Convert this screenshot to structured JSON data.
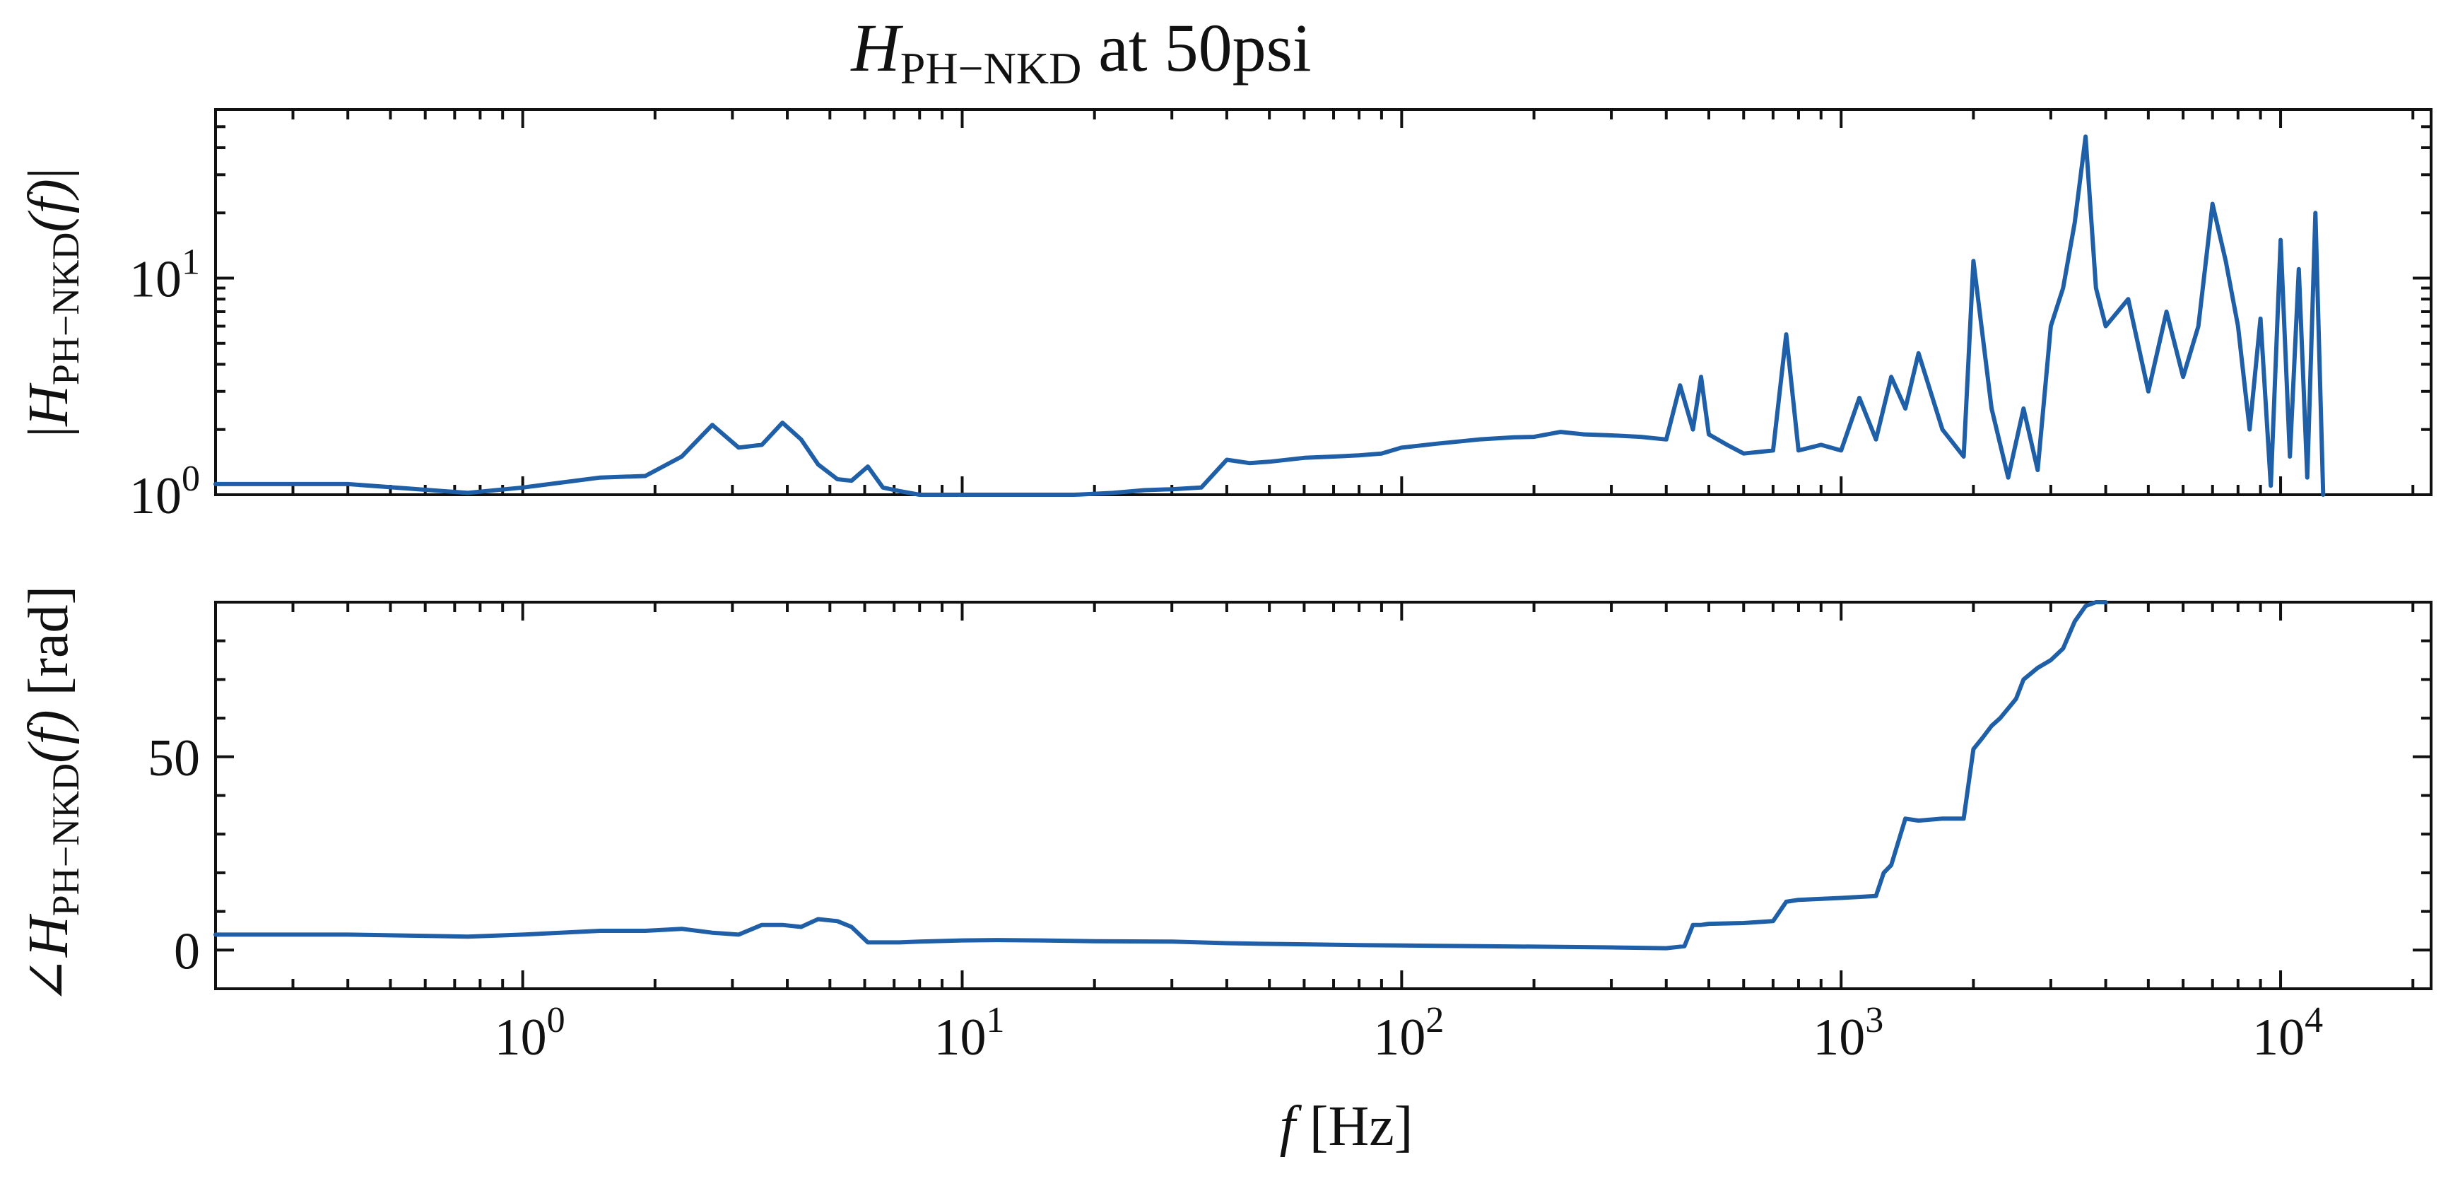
{
  "chart_data": {
    "type": "line",
    "title": {
      "symbol": "H",
      "subscript": "PH−NKD",
      "rest": " at 50psi"
    },
    "xlabel": {
      "symbol": "f",
      "unit": " [Hz]"
    },
    "x_scale": "log",
    "xlim": [
      0.2,
      22000
    ],
    "x_tick_labels": [
      {
        "value": 1,
        "base": "10",
        "exp": "0"
      },
      {
        "value": 10,
        "base": "10",
        "exp": "1"
      },
      {
        "value": 100,
        "base": "10",
        "exp": "2"
      },
      {
        "value": 1000,
        "base": "10",
        "exp": "3"
      },
      {
        "value": 10000,
        "base": "10",
        "exp": "4"
      }
    ],
    "line_color": "#1f5fa8",
    "panels": [
      {
        "name": "magnitude",
        "ylabel": {
          "pre": "|",
          "symbol": "H",
          "subscript": "PH−NKD",
          "arg": "(f)",
          "post": "|"
        },
        "y_scale": "log",
        "ylim": [
          1.0,
          60
        ],
        "y_tick_labels": [
          {
            "value": 1,
            "base": "10",
            "exp": "0"
          },
          {
            "value": 10,
            "base": "10",
            "exp": "1"
          }
        ],
        "x": [
          0.2,
          0.4,
          0.75,
          1.0,
          1.5,
          1.9,
          2.3,
          2.7,
          3.1,
          3.5,
          3.9,
          4.3,
          4.7,
          5.2,
          5.6,
          6.1,
          6.6,
          7.2,
          8.0,
          9.0,
          10,
          12,
          15,
          18,
          22,
          26,
          30,
          35,
          40,
          45,
          50,
          60,
          70,
          80,
          90,
          100,
          120,
          150,
          180,
          200,
          230,
          260,
          300,
          350,
          400,
          430,
          460,
          480,
          500,
          550,
          600,
          700,
          750,
          800,
          900,
          1000,
          1100,
          1200,
          1300,
          1400,
          1500,
          1700,
          1900,
          2000,
          2200,
          2400,
          2600,
          2800,
          3000,
          3200,
          3400,
          3600,
          3800,
          4000,
          4500,
          5000,
          5500,
          6000,
          6500,
          7000,
          7500,
          8000,
          8500,
          9000,
          9500,
          10000,
          10500,
          11000,
          11500,
          12000,
          12500
        ],
        "values": [
          1.12,
          1.12,
          1.02,
          1.08,
          1.2,
          1.22,
          1.5,
          2.1,
          1.65,
          1.7,
          2.15,
          1.8,
          1.38,
          1.18,
          1.16,
          1.35,
          1.08,
          1.04,
          1.0,
          0.97,
          0.96,
          0.97,
          0.98,
          1.0,
          1.02,
          1.05,
          1.06,
          1.08,
          1.45,
          1.4,
          1.42,
          1.48,
          1.5,
          1.52,
          1.55,
          1.65,
          1.72,
          1.8,
          1.84,
          1.85,
          1.95,
          1.9,
          1.88,
          1.85,
          1.8,
          3.2,
          2.0,
          3.5,
          1.9,
          1.7,
          1.55,
          1.6,
          5.5,
          1.6,
          1.7,
          1.6,
          2.8,
          1.8,
          3.5,
          2.5,
          4.5,
          2.0,
          1.5,
          12.0,
          2.5,
          1.2,
          2.5,
          1.3,
          6.0,
          9.0,
          18.0,
          45.0,
          9.0,
          6.0,
          8.0,
          3.0,
          7.0,
          3.5,
          6.0,
          22.0,
          12.0,
          6.0,
          2.0,
          6.5,
          1.1,
          15.0,
          1.5,
          11.0,
          1.2,
          20.0,
          1.0
        ]
      },
      {
        "name": "phase",
        "ylabel": {
          "pre": "∠",
          "symbol": "H",
          "subscript": "PH−NKD",
          "arg": "(f)",
          "post": " [rad]"
        },
        "y_scale": "linear",
        "ylim": [
          -10,
          90
        ],
        "y_tick_labels": [
          {
            "value": 0,
            "text": "0"
          },
          {
            "value": 50,
            "text": "50"
          }
        ],
        "x": [
          0.2,
          0.4,
          0.75,
          1.0,
          1.5,
          1.9,
          2.3,
          2.7,
          3.1,
          3.5,
          3.9,
          4.3,
          4.7,
          5.2,
          5.6,
          6.1,
          6.6,
          7.2,
          8.0,
          10,
          12,
          15,
          20,
          30,
          40,
          50,
          60,
          80,
          100,
          150,
          200,
          300,
          400,
          440,
          460,
          480,
          500,
          600,
          700,
          750,
          800,
          1000,
          1200,
          1250,
          1300,
          1400,
          1500,
          1700,
          1900,
          2000,
          2100,
          2200,
          2300,
          2500,
          2600,
          2800,
          3000,
          3200,
          3400,
          3600,
          3800,
          4000
        ],
        "values": [
          4,
          4,
          3.5,
          4,
          5,
          5,
          5.5,
          4.5,
          4,
          6.5,
          6.5,
          6,
          8,
          7.5,
          6,
          2,
          2,
          2,
          2.2,
          2.5,
          2.6,
          2.5,
          2.3,
          2.2,
          1.8,
          1.6,
          1.5,
          1.3,
          1.2,
          1.0,
          0.9,
          0.7,
          0.5,
          1.0,
          6.5,
          6.5,
          6.8,
          7.0,
          7.5,
          12.5,
          13.0,
          13.5,
          14,
          20,
          22,
          34,
          33.5,
          34,
          34,
          52,
          55,
          58,
          60,
          65,
          70,
          73,
          75,
          78,
          85,
          89,
          90,
          90
        ]
      }
    ]
  }
}
